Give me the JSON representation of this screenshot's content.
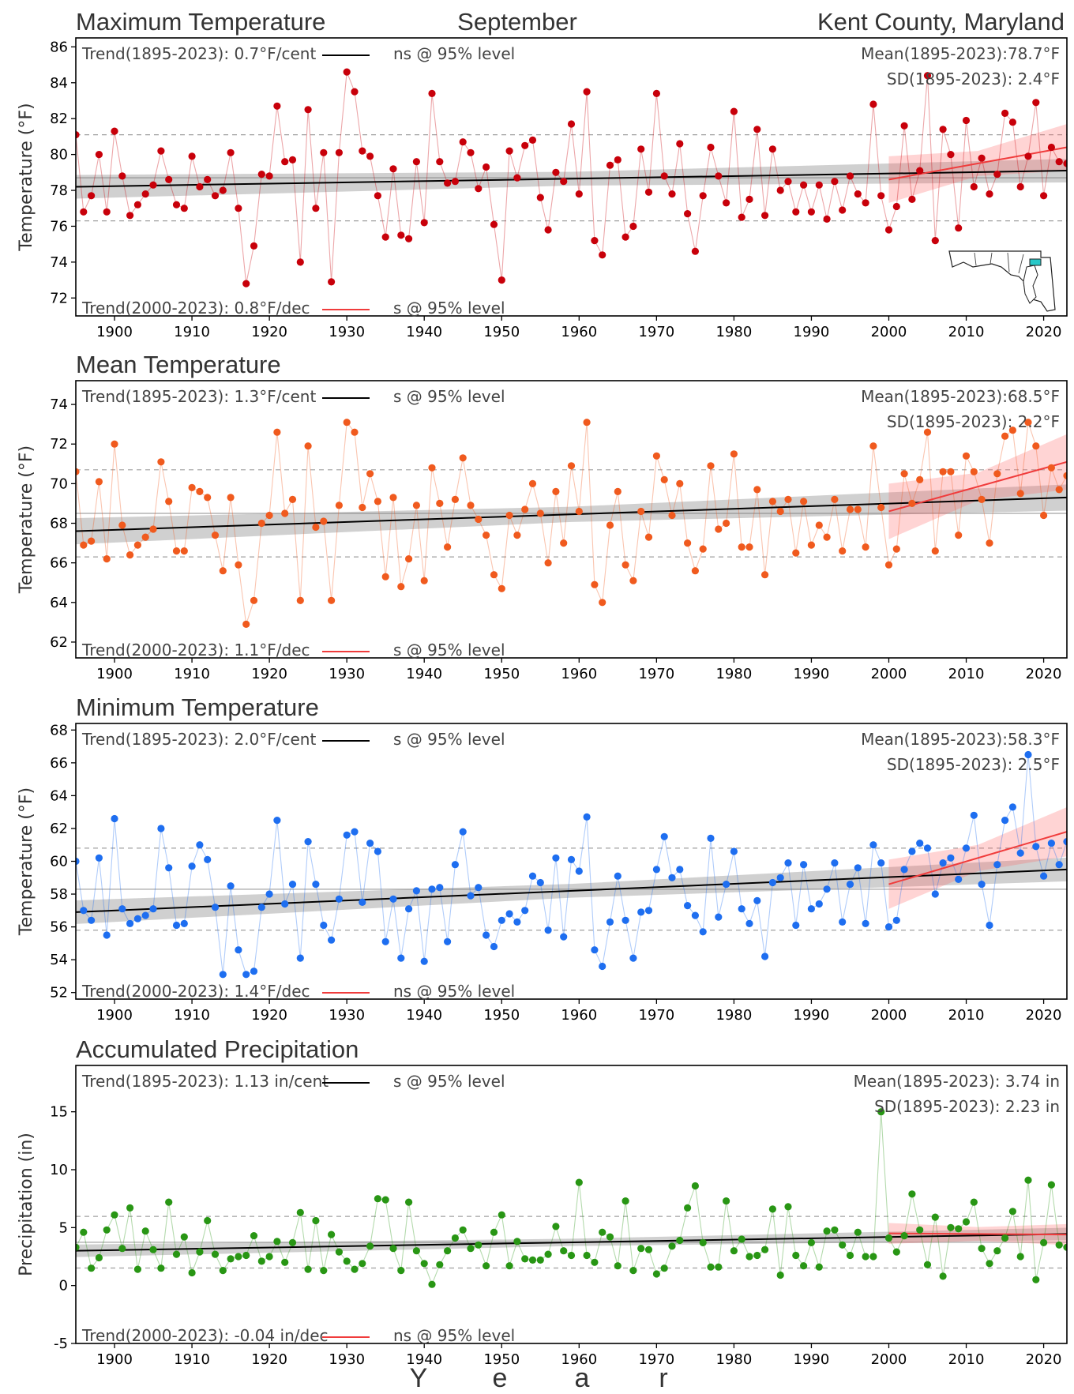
{
  "header": {
    "variable_title": "Maximum Temperature",
    "month": "September",
    "location": "Kent County, Maryland"
  },
  "x_axis_label": [
    "Y",
    "e",
    "a",
    "r"
  ],
  "colors": {
    "max": "#c8000a",
    "mean": "#f05a1e",
    "min": "#1e6ef0",
    "precip": "#289614",
    "recent_trend": "#f03c3c",
    "long_trend": "#000000"
  },
  "map": {
    "name": "maryland-map-inset",
    "highlight": "Kent County"
  },
  "chart_data": [
    {
      "type": "scatter",
      "key": "max",
      "title": "Maximum Temperature",
      "ylabel": "Temperature (°F)",
      "ylim": [
        71,
        86.5
      ],
      "yticks": [
        72,
        74,
        76,
        78,
        80,
        82,
        84,
        86
      ],
      "xlim": [
        1895,
        1923
      ],
      "xticks": [
        1900,
        1910,
        1920,
        1930,
        1940,
        1950,
        1960,
        1970,
        1980,
        1990,
        2000,
        2010,
        2020
      ],
      "grid": false,
      "mean": 78.7,
      "sd": 2.4,
      "mean_text": "Mean(1895-2023):78.7°F",
      "sd_text": "SD(1895-2023): 2.4°F",
      "trend_long_text": "Trend(1895-2023):  0.7°F/cent",
      "trend_long_sig": "ns @ 95% level",
      "trend_recent_text": "Trend(2000-2023):  0.8°F/dec",
      "trend_recent_sig": "s @ 95% level",
      "long_fit": [
        [
          1895,
          78.2
        ],
        [
          2023,
          79.1
        ]
      ],
      "recent_fit": [
        [
          2000,
          78.6
        ],
        [
          2023,
          80.4
        ]
      ],
      "long_band": 0.55,
      "recent_band": [
        0.7,
        1.3
      ],
      "values": [
        81.1,
        76.8,
        77.7,
        80.0,
        76.8,
        81.3,
        78.8,
        76.6,
        77.2,
        77.8,
        78.3,
        80.2,
        78.6,
        77.2,
        77.0,
        79.9,
        78.2,
        78.6,
        77.7,
        78.0,
        80.1,
        77.0,
        72.8,
        74.9,
        78.9,
        78.8,
        82.7,
        79.6,
        79.7,
        74.0,
        82.5,
        77.0,
        80.1,
        72.9,
        80.1,
        84.6,
        83.5,
        80.2,
        79.9,
        77.7,
        75.4,
        79.2,
        75.5,
        75.3,
        79.6,
        76.2,
        83.4,
        79.6,
        78.4,
        78.5,
        80.7,
        80.1,
        78.1,
        79.3,
        76.1,
        73.0,
        80.2,
        78.7,
        80.5,
        80.8,
        77.6,
        75.8,
        79.0,
        78.5,
        81.7,
        77.8,
        83.5,
        75.2,
        74.4,
        79.4,
        79.7,
        75.4,
        76.0,
        80.3,
        77.9,
        83.4,
        78.8,
        77.8,
        80.6,
        76.7,
        74.6,
        77.7,
        80.4,
        78.8,
        77.3,
        82.4,
        76.5,
        77.5,
        81.4,
        76.6,
        80.3,
        78.0,
        78.5,
        76.8,
        78.3,
        76.8,
        78.3,
        76.4,
        78.5,
        76.9,
        78.8,
        77.8,
        77.3,
        82.8,
        77.7,
        75.8,
        77.1,
        81.6,
        77.5,
        79.1,
        84.4,
        75.2,
        81.4,
        80.0,
        75.9,
        81.9,
        78.2,
        79.8,
        77.8,
        78.9,
        82.3,
        81.8,
        78.2,
        79.9,
        82.9,
        77.7,
        80.4,
        79.6,
        79.5
      ]
    },
    {
      "type": "scatter",
      "key": "mean",
      "title": "Mean Temperature",
      "ylabel": "Temperature (°F)",
      "ylim": [
        61.2,
        75.2
      ],
      "yticks": [
        62,
        64,
        66,
        68,
        70,
        72,
        74
      ],
      "xlim": [
        1895,
        1923
      ],
      "xticks": [
        1900,
        1910,
        1920,
        1930,
        1940,
        1950,
        1960,
        1970,
        1980,
        1990,
        2000,
        2010,
        2020
      ],
      "grid": false,
      "mean": 68.5,
      "sd": 2.2,
      "mean_text": "Mean(1895-2023):68.5°F",
      "sd_text": "SD(1895-2023): 2.2°F",
      "trend_long_text": "Trend(1895-2023):  1.3°F/cent",
      "trend_long_sig": "s @ 95% level",
      "trend_recent_text": "Trend(2000-2023):  1.1°F/dec",
      "trend_recent_sig": "s @ 95% level",
      "long_fit": [
        [
          1895,
          67.6
        ],
        [
          2023,
          69.3
        ]
      ],
      "recent_fit": [
        [
          2000,
          68.6
        ],
        [
          2023,
          71.1
        ]
      ],
      "long_band": 0.55,
      "recent_band": [
        0.7,
        1.4
      ],
      "values": [
        70.6,
        66.9,
        67.1,
        70.1,
        66.2,
        72.0,
        67.9,
        66.4,
        66.9,
        67.3,
        67.7,
        71.1,
        69.1,
        66.6,
        66.6,
        69.8,
        69.6,
        69.3,
        67.4,
        65.6,
        69.3,
        65.9,
        62.9,
        64.1,
        68.0,
        68.4,
        72.6,
        68.5,
        69.2,
        64.1,
        71.9,
        67.8,
        68.1,
        64.1,
        68.9,
        73.1,
        72.6,
        68.8,
        70.5,
        69.1,
        65.3,
        69.3,
        64.8,
        66.2,
        68.9,
        65.1,
        70.8,
        69.0,
        66.8,
        69.2,
        71.3,
        68.9,
        68.2,
        67.4,
        65.4,
        64.7,
        68.4,
        67.4,
        68.7,
        70.0,
        68.5,
        66.0,
        69.6,
        67.0,
        70.9,
        68.6,
        73.1,
        64.9,
        64.0,
        67.9,
        69.6,
        65.9,
        65.1,
        68.6,
        67.3,
        71.4,
        70.2,
        68.4,
        70.0,
        67.0,
        65.6,
        66.7,
        70.9,
        67.7,
        68.0,
        71.5,
        66.8,
        66.8,
        69.7,
        65.4,
        69.1,
        68.6,
        69.2,
        66.5,
        69.1,
        66.9,
        67.9,
        67.3,
        69.2,
        66.6,
        68.7,
        68.7,
        66.8,
        71.9,
        68.8,
        65.9,
        66.7,
        70.5,
        69.0,
        70.2,
        72.6,
        66.6,
        70.6,
        70.6,
        67.4,
        71.4,
        70.6,
        69.2,
        67.0,
        70.5,
        72.4,
        72.7,
        69.5,
        73.1,
        71.9,
        68.4,
        70.8,
        69.7,
        70.4
      ]
    },
    {
      "type": "scatter",
      "key": "min",
      "title": "Minimum Temperature",
      "ylabel": "Temperature (°F)",
      "ylim": [
        51.6,
        68.4
      ],
      "yticks": [
        52,
        54,
        56,
        58,
        60,
        62,
        64,
        66,
        68
      ],
      "xlim": [
        1895,
        1923
      ],
      "xticks": [
        1900,
        1910,
        1920,
        1930,
        1940,
        1950,
        1960,
        1970,
        1980,
        1990,
        2000,
        2010,
        2020
      ],
      "grid": false,
      "mean": 58.3,
      "sd": 2.5,
      "mean_text": "Mean(1895-2023):58.3°F",
      "sd_text": "SD(1895-2023): 2.5°F",
      "trend_long_text": "Trend(1895-2023):  2.0°F/cent",
      "trend_long_sig": "s @ 95% level",
      "trend_recent_text": "Trend(2000-2023):  1.4°F/dec",
      "trend_recent_sig": "ns @ 95% level",
      "long_fit": [
        [
          1895,
          56.9
        ],
        [
          2023,
          59.5
        ]
      ],
      "recent_fit": [
        [
          2000,
          58.6
        ],
        [
          2023,
          61.8
        ]
      ],
      "long_band": 0.6,
      "recent_band": [
        0.8,
        1.5
      ],
      "values": [
        60.0,
        57.0,
        56.4,
        60.2,
        55.5,
        62.6,
        57.1,
        56.2,
        56.5,
        56.7,
        57.1,
        62.0,
        59.6,
        56.1,
        56.2,
        59.7,
        61.0,
        60.1,
        57.2,
        53.1,
        58.5,
        54.6,
        53.1,
        53.3,
        57.2,
        58.0,
        62.5,
        57.4,
        58.6,
        54.1,
        61.2,
        58.6,
        56.1,
        55.2,
        57.7,
        61.6,
        61.8,
        57.5,
        61.1,
        60.6,
        55.1,
        57.7,
        54.1,
        57.1,
        58.2,
        53.9,
        58.3,
        58.4,
        55.1,
        59.8,
        61.8,
        57.9,
        58.4,
        55.5,
        54.8,
        56.4,
        56.8,
        56.3,
        57.0,
        59.1,
        58.7,
        55.8,
        60.2,
        55.4,
        60.1,
        59.4,
        62.7,
        54.6,
        53.6,
        56.3,
        59.1,
        56.4,
        54.1,
        56.9,
        57.0,
        59.5,
        61.5,
        59.0,
        59.5,
        57.3,
        56.7,
        55.7,
        61.4,
        56.6,
        58.6,
        60.6,
        57.1,
        56.2,
        57.6,
        54.2,
        58.7,
        59.0,
        59.9,
        56.1,
        59.8,
        57.1,
        57.4,
        58.3,
        59.9,
        56.3,
        58.6,
        59.6,
        56.2,
        61.0,
        59.9,
        56.0,
        56.4,
        59.5,
        60.6,
        61.1,
        60.8,
        58.0,
        59.9,
        60.2,
        58.9,
        60.8,
        62.8,
        58.6,
        56.1,
        59.8,
        62.5,
        63.3,
        60.5,
        66.5,
        60.9,
        59.1,
        61.1,
        59.8,
        61.2
      ]
    },
    {
      "type": "scatter",
      "key": "precip",
      "title": "Accumulated Precipitation",
      "ylabel": "Precipitation (in)",
      "ylim": [
        -5,
        19
      ],
      "yticks": [
        -5,
        0,
        5,
        10,
        15
      ],
      "xlim": [
        1895,
        1923
      ],
      "xticks": [
        1900,
        1910,
        1920,
        1930,
        1940,
        1950,
        1960,
        1970,
        1980,
        1990,
        2000,
        2010,
        2020
      ],
      "grid": false,
      "mean": 3.74,
      "sd": 2.23,
      "mean_text": "Mean(1895-2023): 3.74 in",
      "sd_text": "SD(1895-2023): 2.23 in",
      "trend_long_text": "Trend(1895-2023):  1.13 in/cent",
      "trend_long_sig": "s @ 95% level",
      "trend_recent_text": "Trend(2000-2023): -0.04 in/dec",
      "trend_recent_sig": "ns @ 95% level",
      "long_fit": [
        [
          1895,
          3.0
        ],
        [
          2023,
          4.45
        ]
      ],
      "recent_fit": [
        [
          2000,
          4.5
        ],
        [
          2023,
          4.4
        ]
      ],
      "long_band": 0.45,
      "recent_band": [
        0.6,
        0.9
      ],
      "values": [
        3.3,
        4.6,
        1.5,
        2.4,
        4.8,
        6.1,
        3.2,
        6.7,
        1.4,
        4.7,
        3.1,
        1.5,
        7.2,
        2.7,
        4.2,
        1.1,
        2.9,
        5.6,
        2.7,
        1.3,
        2.3,
        2.5,
        2.6,
        4.3,
        2.1,
        2.5,
        3.8,
        2.0,
        3.7,
        6.3,
        1.4,
        5.6,
        1.3,
        4.4,
        2.9,
        2.1,
        1.4,
        1.9,
        3.4,
        7.5,
        7.4,
        3.2,
        1.3,
        7.2,
        3.0,
        1.9,
        0.1,
        1.8,
        3.0,
        4.1,
        4.8,
        3.2,
        3.5,
        1.7,
        4.6,
        6.1,
        1.7,
        3.8,
        2.3,
        2.2,
        2.2,
        2.7,
        5.1,
        3.0,
        2.6,
        8.9,
        2.6,
        2.0,
        4.6,
        4.2,
        1.7,
        7.3,
        1.3,
        3.2,
        3.1,
        1.0,
        1.5,
        3.4,
        3.9,
        6.7,
        8.6,
        3.7,
        1.6,
        1.6,
        7.3,
        3.0,
        4.0,
        2.5,
        2.6,
        3.1,
        6.6,
        0.9,
        6.8,
        2.6,
        1.7,
        3.7,
        1.6,
        4.7,
        4.8,
        3.5,
        2.6,
        4.6,
        2.5,
        2.5,
        15.0,
        4.1,
        2.9,
        4.3,
        7.9,
        4.8,
        1.8,
        5.9,
        0.8,
        5.0,
        4.9,
        5.5,
        7.2,
        3.2,
        1.9,
        3.0,
        4.1,
        6.4,
        2.5,
        9.1,
        0.5,
        3.7,
        8.7,
        3.5,
        3.3
      ]
    }
  ]
}
